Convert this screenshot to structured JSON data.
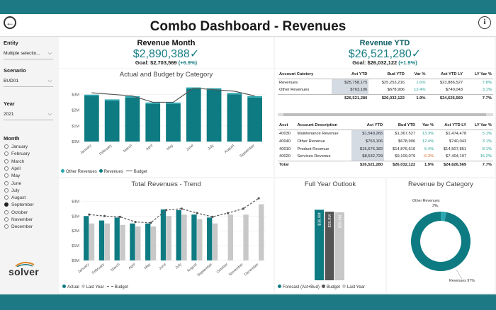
{
  "app": {
    "title": "Combo Dashboard - Revenues",
    "logo": "solver"
  },
  "colors": {
    "teal": "#0e7b82",
    "gray": "#c8c8c8",
    "dark": "#555555",
    "accent": "#1a7f86"
  },
  "filters": {
    "entity": {
      "label": "Entity",
      "value": "Multiple selectio..."
    },
    "scenario": {
      "label": "Scenario",
      "value": "BUD01"
    },
    "year": {
      "label": "Year",
      "value": "2021"
    },
    "month": {
      "label": "Month",
      "options": [
        "January",
        "February",
        "March",
        "April",
        "May",
        "June",
        "July",
        "August",
        "September",
        "October",
        "November",
        "December"
      ],
      "selected": "September"
    }
  },
  "kpi_month": {
    "title": "Revenue Month",
    "value": "$2,890,388",
    "check": "✓",
    "goal_label": "Goal: $2,703,569",
    "goal_pct": "(+6.9%)"
  },
  "kpi_ytd": {
    "title": "Revenue YTD",
    "value": "$26,521,280",
    "check": "✓",
    "goal_label": "Goal: $26,032,122",
    "goal_pct": "(+1.9%)"
  },
  "table1": {
    "headers": [
      "Account Catetory",
      "Act YTD",
      "Bud YTD",
      "Var %",
      "Act YTD LY",
      "LY Var %"
    ],
    "rows": [
      [
        "Revenues",
        "$25,758,175",
        "$25,253,216",
        "1.6%",
        "$23,886,527",
        "7.8%"
      ],
      [
        "Other Revenues",
        "$763,106",
        "$678,906",
        "12.4%",
        "$740,043",
        "3.1%"
      ]
    ],
    "total": [
      "",
      "$26,521,280",
      "$26,032,122",
      "1.9%",
      "$24,626,569",
      "7.7%"
    ]
  },
  "table2": {
    "headers": [
      "Acct",
      "Account Description",
      "Act YTD",
      "Bud YTD",
      "Var %",
      "Act YTD LY",
      "LY Var %"
    ],
    "rows": [
      [
        "40030",
        "Maintenance Revenue",
        "$1,549,265",
        "$1,367,527",
        "13.3%",
        "$1,474,478",
        "5.1%"
      ],
      [
        "40040",
        "Other Revenue",
        "$763,106",
        "$678,906",
        "12.4%",
        "$740,043",
        "3.1%"
      ],
      [
        "40010",
        "Product Revenue",
        "$15,676,182",
        "$14,876,610",
        "5.4%",
        "$14,507,851",
        "8.1%"
      ],
      [
        "40020",
        "Services Revenue",
        "$8,532,729",
        "$9,109,079",
        "-6.3%",
        "$7,404,197",
        "15.2%"
      ]
    ],
    "total": [
      "Total",
      "",
      "$26,521,280",
      "$26,032,122",
      "1.9%",
      "$24,626,569",
      "7.7%"
    ]
  },
  "chart_data": [
    {
      "type": "bar",
      "title": "Actual and Budget by Category",
      "categories": [
        "January",
        "February",
        "March",
        "April",
        "May",
        "June",
        "July",
        "August",
        "September"
      ],
      "series": [
        {
          "name": "Other Revenues",
          "kind": "bar",
          "values": [
            0.08,
            0.08,
            0.08,
            0.08,
            0.08,
            0.09,
            0.09,
            0.09,
            0.09
          ]
        },
        {
          "name": "Revenues",
          "kind": "bar",
          "values": [
            2.9,
            2.6,
            2.8,
            2.4,
            2.4,
            3.35,
            3.3,
            3.0,
            2.8
          ]
        },
        {
          "name": "Budget",
          "kind": "line",
          "values": [
            3.1,
            3.0,
            2.9,
            2.5,
            2.5,
            3.4,
            3.3,
            3.2,
            2.9
          ]
        }
      ],
      "yticks": [
        "$0M",
        "$1M",
        "$2M",
        "$3M"
      ],
      "ylim": [
        0,
        3.6
      ]
    },
    {
      "type": "bar",
      "title": "Total Revenues - Trend",
      "categories": [
        "January",
        "February",
        "March",
        "April",
        "May",
        "June",
        "July",
        "August",
        "September",
        "October",
        "November",
        "December"
      ],
      "series": [
        {
          "name": "Actual",
          "kind": "bar",
          "values": [
            3.0,
            2.7,
            2.9,
            2.5,
            2.5,
            3.45,
            3.4,
            3.1,
            2.9,
            null,
            null,
            null
          ]
        },
        {
          "name": "Last Year",
          "kind": "bar",
          "values": [
            2.5,
            2.5,
            2.4,
            2.3,
            2.3,
            3.0,
            3.1,
            2.8,
            2.5,
            3.1,
            3.1,
            3.8
          ]
        },
        {
          "name": "Budget",
          "kind": "line",
          "values": [
            3.1,
            3.0,
            2.95,
            2.6,
            2.55,
            3.4,
            3.5,
            3.2,
            2.95,
            3.2,
            3.5,
            4.2
          ]
        }
      ],
      "yticks": [
        "$0M",
        "$1M",
        "$2M",
        "$3M",
        "$4M"
      ],
      "ylim": [
        0,
        4.4
      ]
    },
    {
      "type": "bar",
      "title": "Full Year Outlook",
      "categories": [
        "Forecast (Act+Bud)",
        "Budget",
        "Last Year"
      ],
      "values": [
        36.9,
        35.9,
        35.6
      ],
      "labels": [
        "$36.9M",
        "$35.9M",
        "$35.6M"
      ]
    },
    {
      "type": "pie",
      "title": "Revenue by Category",
      "categories": [
        "Other Revenues",
        "Revenues"
      ],
      "values": [
        3,
        97
      ],
      "labels": [
        "Other Revenues 3%",
        "Revenues 97%"
      ]
    }
  ]
}
